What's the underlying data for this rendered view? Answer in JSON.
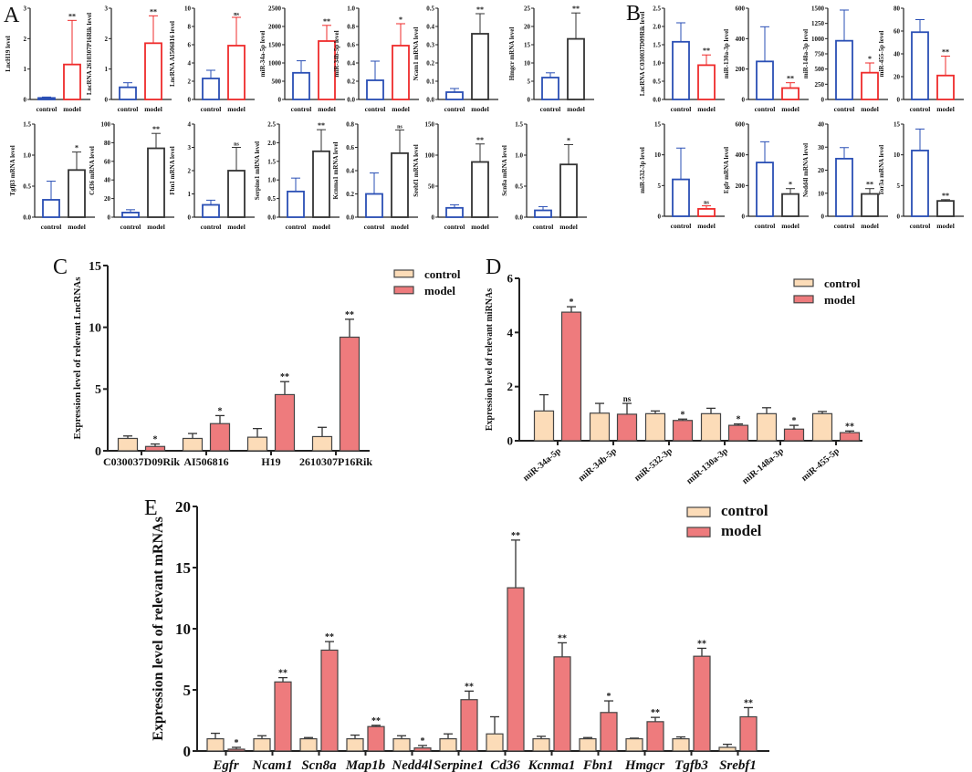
{
  "colors": {
    "blue": "#2a4fb5",
    "red": "#ef2b2b",
    "black": "#333333",
    "control_fill": "#fcdcb8",
    "model_fill": "#ee7b7d",
    "axis": "#222222"
  },
  "panel_labels": {
    "A": "A",
    "B": "B",
    "C": "C",
    "D": "D",
    "E": "E"
  },
  "chart_data": [
    {
      "panel": "A",
      "type": "bar",
      "ylabel": "LncH19 level",
      "categories": [
        "control",
        "model"
      ],
      "values": [
        0.05,
        1.15
      ],
      "err_top": [
        0.08,
        2.6
      ],
      "sig": "**",
      "ylim": [
        0,
        3
      ],
      "ticks": [
        "0",
        "1",
        "2",
        "3"
      ],
      "model_color": "red"
    },
    {
      "panel": "A",
      "type": "bar",
      "ylabel": "LncRNA 2610307P16Rik level",
      "categories": [
        "control",
        "model"
      ],
      "values": [
        0.4,
        1.85
      ],
      "err_top": [
        0.55,
        2.75
      ],
      "sig": "**",
      "ylim": [
        0,
        3
      ],
      "ticks": [
        "0",
        "1",
        "2",
        "3"
      ],
      "model_color": "red"
    },
    {
      "panel": "A",
      "type": "bar",
      "ylabel": "LncRNA AI506816 level",
      "categories": [
        "control",
        "model"
      ],
      "values": [
        2.3,
        5.9
      ],
      "err_top": [
        3.2,
        9.0
      ],
      "sig": "ns",
      "ylim": [
        0,
        10
      ],
      "ticks": [
        "0",
        "2",
        "4",
        "6",
        "8",
        "10"
      ],
      "model_color": "red"
    },
    {
      "panel": "A",
      "type": "bar",
      "ylabel": "miR-34a-5p level",
      "categories": [
        "control",
        "model"
      ],
      "values": [
        730,
        1600
      ],
      "err_top": [
        1060,
        2030
      ],
      "sig": "**",
      "ylim": [
        0,
        2500
      ],
      "ticks": [
        "0",
        "500",
        "1000",
        "1500",
        "2000",
        "2500"
      ],
      "model_color": "red"
    },
    {
      "panel": "A",
      "type": "bar",
      "ylabel": "miR-34b-5p level",
      "categories": [
        "control",
        "model"
      ],
      "values": [
        0.21,
        0.59
      ],
      "err_top": [
        0.42,
        0.83
      ],
      "sig": "*",
      "ylim": [
        0,
        1.0
      ],
      "ticks": [
        "0.0",
        "0.2",
        "0.4",
        "0.6",
        "0.8",
        "1.0"
      ],
      "model_color": "red"
    },
    {
      "panel": "A",
      "type": "bar",
      "ylabel": "Ncam1 mRNA level",
      "categories": [
        "control",
        "model"
      ],
      "values": [
        0.04,
        0.36
      ],
      "err_top": [
        0.06,
        0.47
      ],
      "sig": "**",
      "ylim": [
        0,
        0.5
      ],
      "ticks": [
        "0.0",
        "0.1",
        "0.2",
        "0.3",
        "0.4",
        "0.5"
      ],
      "model_color": "black"
    },
    {
      "panel": "A",
      "type": "bar",
      "ylabel": "Hmgcr mRNA level",
      "categories": [
        "control",
        "model"
      ],
      "values": [
        6,
        16.6
      ],
      "err_top": [
        7.3,
        23.7
      ],
      "sig": "**",
      "ylim": [
        0,
        25
      ],
      "ticks": [
        "0",
        "5",
        "10",
        "15",
        "20",
        "25"
      ],
      "model_color": "black"
    },
    {
      "panel": "A",
      "type": "bar",
      "ylabel": "Tgfβ3 mRNA level",
      "categories": [
        "control",
        "model"
      ],
      "values": [
        0.28,
        0.76
      ],
      "err_top": [
        0.58,
        1.05
      ],
      "sig": "*",
      "ylim": [
        0,
        1.5
      ],
      "ticks": [
        "0.0",
        "0.5",
        "1.0",
        "1.5"
      ],
      "model_color": "black"
    },
    {
      "panel": "A",
      "type": "bar",
      "ylabel": "Cd36 mRNA level",
      "categories": [
        "control",
        "model"
      ],
      "values": [
        5,
        74
      ],
      "err_top": [
        8,
        90
      ],
      "sig": "**",
      "ylim": [
        0,
        100
      ],
      "ticks": [
        "0",
        "20",
        "40",
        "60",
        "80",
        "100"
      ],
      "model_color": "black"
    },
    {
      "panel": "A",
      "type": "bar",
      "ylabel": "Fbn1 mRNA level",
      "categories": [
        "control",
        "model"
      ],
      "values": [
        0.53,
        2.0
      ],
      "err_top": [
        0.73,
        3.0
      ],
      "sig": "ns",
      "ylim": [
        0,
        4
      ],
      "ticks": [
        "0",
        "1",
        "2",
        "3",
        "4"
      ],
      "model_color": "black"
    },
    {
      "panel": "A",
      "type": "bar",
      "ylabel": "Serpine1 mRNA level",
      "categories": [
        "control",
        "model"
      ],
      "values": [
        0.69,
        1.77
      ],
      "err_top": [
        1.05,
        2.35
      ],
      "sig": "**",
      "ylim": [
        0,
        2.5
      ],
      "ticks": [
        "0.0",
        "0.5",
        "1.0",
        "1.5",
        "2.0",
        "2.5"
      ],
      "model_color": "black"
    },
    {
      "panel": "A",
      "type": "bar",
      "ylabel": "Kcnma1 mRNA level",
      "categories": [
        "control",
        "model"
      ],
      "values": [
        0.2,
        0.55
      ],
      "err_top": [
        0.38,
        0.75
      ],
      "sig": "ns",
      "ylim": [
        0,
        0.8
      ],
      "ticks": [
        "0.0",
        "0.2",
        "0.4",
        "0.6",
        "0.8"
      ],
      "model_color": "black"
    },
    {
      "panel": "A",
      "type": "bar",
      "ylabel": "Srebf1 mRNA level",
      "categories": [
        "control",
        "model"
      ],
      "values": [
        15,
        89
      ],
      "err_top": [
        20,
        118
      ],
      "sig": "**",
      "ylim": [
        0,
        150
      ],
      "ticks": [
        "0",
        "50",
        "100",
        "150"
      ],
      "model_color": "black"
    },
    {
      "panel": "A",
      "type": "bar",
      "ylabel": "Scn8a mRNA level",
      "categories": [
        "control",
        "model"
      ],
      "values": [
        0.11,
        0.85
      ],
      "err_top": [
        0.17,
        1.17
      ],
      "sig": "*",
      "ylim": [
        0,
        1.5
      ],
      "ticks": [
        "0.0",
        "0.5",
        "1.0",
        "1.5"
      ],
      "model_color": "black"
    },
    {
      "panel": "B",
      "type": "bar",
      "ylabel": "LncRNA C030037D09Rik level",
      "categories": [
        "control",
        "model"
      ],
      "values": [
        1.58,
        0.94
      ],
      "err_top": [
        2.1,
        1.22
      ],
      "sig": "**",
      "ylim": [
        0,
        2.5
      ],
      "ticks": [
        "0.0",
        "0.5",
        "1.0",
        "1.5",
        "2.0",
        "2.5"
      ],
      "model_color": "red"
    },
    {
      "panel": "B",
      "type": "bar",
      "ylabel": "miR-130a-3p level",
      "categories": [
        "control",
        "model"
      ],
      "values": [
        250,
        75
      ],
      "err_top": [
        478,
        110
      ],
      "sig": "**",
      "ylim": [
        0,
        600
      ],
      "ticks": [
        "0",
        "200",
        "400",
        "600"
      ],
      "model_color": "red"
    },
    {
      "panel": "B",
      "type": "bar",
      "ylabel": "miR-148a-3p level",
      "categories": [
        "control",
        "model"
      ],
      "values": [
        965,
        440
      ],
      "err_top": [
        1470,
        600
      ],
      "sig": "*",
      "ylim": [
        0,
        1500
      ],
      "ticks": [
        "0",
        "250",
        "500",
        "750",
        "1000",
        "1250",
        "1500"
      ],
      "model_color": "red"
    },
    {
      "panel": "B",
      "type": "bar",
      "ylabel": "miR-455-5p level",
      "categories": [
        "control",
        "model"
      ],
      "values": [
        59,
        21
      ],
      "err_top": [
        70,
        38
      ],
      "sig": "**",
      "ylim": [
        0,
        80
      ],
      "ticks": [
        "0",
        "20",
        "40",
        "60",
        "80"
      ],
      "model_color": "red"
    },
    {
      "panel": "B",
      "type": "bar",
      "ylabel": "miR-532-3p level",
      "categories": [
        "control",
        "model"
      ],
      "values": [
        6,
        1.2
      ],
      "err_top": [
        11.1,
        1.7
      ],
      "sig": "ns",
      "ylim": [
        0,
        15
      ],
      "ticks": [
        "0",
        "5",
        "10",
        "15"
      ],
      "model_color": "red"
    },
    {
      "panel": "B",
      "type": "bar",
      "ylabel": "Egfr mRNA level",
      "categories": [
        "control",
        "model"
      ],
      "values": [
        350,
        145
      ],
      "err_top": [
        485,
        180
      ],
      "sig": "*",
      "ylim": [
        0,
        600
      ],
      "ticks": [
        "0",
        "200",
        "400",
        "600"
      ],
      "model_color": "black"
    },
    {
      "panel": "B",
      "type": "bar",
      "ylabel": "Nedd4l mRNA level",
      "categories": [
        "control",
        "model"
      ],
      "values": [
        25,
        9.7
      ],
      "err_top": [
        29.8,
        12
      ],
      "sig": "**",
      "ylim": [
        0,
        40
      ],
      "ticks": [
        "0",
        "10",
        "20",
        "30",
        "40"
      ],
      "model_color": "black"
    },
    {
      "panel": "B",
      "type": "bar",
      "ylabel": "Tor3a mRNA level",
      "categories": [
        "control",
        "model"
      ],
      "values": [
        10.7,
        2.5
      ],
      "err_top": [
        14.2,
        2.7
      ],
      "sig": "**",
      "ylim": [
        0,
        15
      ],
      "ticks": [
        "0",
        "5",
        "10",
        "15"
      ],
      "model_color": "black"
    },
    {
      "panel": "C",
      "type": "bar",
      "ylabel": "Expression level of relevant LncRNAs",
      "legend": [
        "control",
        "model"
      ],
      "legend_position": "top-right",
      "categories": [
        "C030037D09Rik",
        "AI506816",
        "H19",
        "2610307P16Rik"
      ],
      "series": [
        {
          "name": "control",
          "values": [
            1.0,
            1.0,
            1.1,
            1.15
          ],
          "err_top": [
            1.2,
            1.4,
            1.8,
            1.9
          ]
        },
        {
          "name": "model",
          "values": [
            0.35,
            2.2,
            4.55,
            9.2
          ],
          "err_top": [
            0.55,
            2.85,
            5.6,
            10.65
          ]
        }
      ],
      "sig": [
        "*",
        "*",
        "**",
        "**"
      ],
      "ylim": [
        0,
        15
      ],
      "ticks": [
        "0",
        "5",
        "10",
        "15"
      ]
    },
    {
      "panel": "D",
      "type": "bar",
      "ylabel": "Expression level of relevant miRNAs",
      "legend": [
        "control",
        "model"
      ],
      "legend_position": "top-right",
      "categories": [
        "miR-34a-5p",
        "miR-34b-5p",
        "miR-532-3p",
        "miR-130a-3p",
        "miR-148a-3p",
        "miR-455-5p"
      ],
      "series": [
        {
          "name": "control",
          "values": [
            1.1,
            1.02,
            1.0,
            1.0,
            1.0,
            1.0
          ],
          "err_top": [
            1.7,
            1.38,
            1.1,
            1.2,
            1.22,
            1.08
          ]
        },
        {
          "name": "model",
          "values": [
            4.75,
            0.98,
            0.75,
            0.57,
            0.43,
            0.3
          ],
          "err_top": [
            4.95,
            1.38,
            0.8,
            0.62,
            0.57,
            0.36
          ]
        }
      ],
      "sig": [
        "*",
        "ns",
        "*",
        "*",
        "*",
        "**"
      ],
      "ylim": [
        0,
        6
      ],
      "ticks": [
        "0",
        "2",
        "4",
        "6"
      ]
    },
    {
      "panel": "E",
      "type": "bar",
      "ylabel": "Expression level of relevant mRNAs",
      "legend": [
        "control",
        "model"
      ],
      "legend_position": "top-right",
      "categories": [
        "Egfr",
        "Ncam1",
        "Scn8a",
        "Map1b",
        "Nedd4l",
        "Serpine1",
        "Cd36",
        "Kcnma1",
        "Fbn1",
        "Hmgcr",
        "Tgfb3",
        "Srebf1"
      ],
      "series": [
        {
          "name": "control",
          "values": [
            1.0,
            1.0,
            1.0,
            1.0,
            1.0,
            1.0,
            1.4,
            1.0,
            1.0,
            1.0,
            1.0,
            0.3
          ],
          "err_top": [
            1.45,
            1.25,
            1.1,
            1.3,
            1.25,
            1.4,
            2.8,
            1.2,
            1.1,
            1.05,
            1.15,
            0.55
          ]
        },
        {
          "name": "model",
          "values": [
            0.15,
            5.65,
            8.25,
            2.0,
            0.25,
            4.2,
            13.35,
            7.7,
            3.15,
            2.4,
            7.75,
            2.8
          ],
          "err_top": [
            0.3,
            6.0,
            8.95,
            2.1,
            0.45,
            4.9,
            17.25,
            8.85,
            4.1,
            2.75,
            8.4,
            3.55
          ]
        }
      ],
      "sig": [
        "*",
        "**",
        "**",
        "**",
        "*",
        "**",
        "**",
        "**",
        "*",
        "**",
        "**",
        "**"
      ],
      "ylim": [
        0,
        20
      ],
      "ticks": [
        "0",
        "5",
        "10",
        "15",
        "20"
      ]
    }
  ]
}
